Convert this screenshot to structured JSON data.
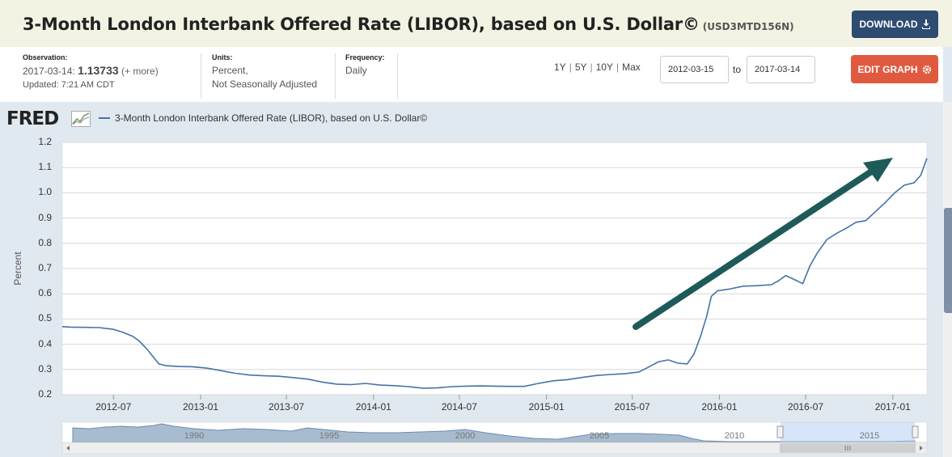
{
  "header": {
    "title": "3-Month London Interbank Offered Rate (LIBOR), based on U.S. Dollar©",
    "series_id": "(USD3MTD156N)",
    "download_label": "DOWNLOAD"
  },
  "info": {
    "observation_label": "Observation:",
    "observation_date": "2017-03-14:",
    "observation_value": "1.13733",
    "observation_more": "(+ more)",
    "updated": "Updated: 7:21 AM CDT",
    "units_label": "Units:",
    "units_line1": "Percent,",
    "units_line2": "Not Seasonally Adjusted",
    "frequency_label": "Frequency:",
    "frequency_value": "Daily"
  },
  "controls": {
    "range_1y": "1Y",
    "range_5y": "5Y",
    "range_10y": "10Y",
    "range_max": "Max",
    "start_date": "2012-03-15",
    "to_label": "to",
    "end_date": "2017-03-14",
    "edit_label": "EDIT GRAPH"
  },
  "brand": {
    "logo_text": "FRED"
  },
  "legend": {
    "series_label": "3-Month London Interbank Offered Rate (LIBOR), based on U.S. Dollar©"
  },
  "colors": {
    "series": "#4572a7",
    "arrow": "#1f5a5a",
    "download_bg": "#2e4b72",
    "edit_bg": "#e05a3f"
  },
  "navigator": {
    "years": [
      "1990",
      "1995",
      "2000",
      "2005",
      "2010",
      "2015"
    ]
  },
  "chart_data": {
    "type": "line",
    "title": "",
    "ylabel": "Percent",
    "ylim": [
      0.2,
      1.2
    ],
    "yticks": [
      "0.2",
      "0.3",
      "0.4",
      "0.5",
      "0.6",
      "0.7",
      "0.8",
      "0.9",
      "1.0",
      "1.1",
      "1.2"
    ],
    "xlim": [
      "2012-03-15",
      "2017-03-14"
    ],
    "xticks": [
      "2012-07",
      "2013-01",
      "2013-07",
      "2014-01",
      "2014-07",
      "2015-01",
      "2015-07",
      "2016-01",
      "2016-07",
      "2017-01"
    ],
    "grid": true,
    "legend_position": "top-left",
    "series": [
      {
        "name": "3-Month London Interbank Offered Rate (LIBOR), based on U.S. Dollar©",
        "points": [
          [
            "2012-03-15",
            0.47
          ],
          [
            "2012-04-01",
            0.468
          ],
          [
            "2012-05-01",
            0.467
          ],
          [
            "2012-06-01",
            0.466
          ],
          [
            "2012-07-01",
            0.459
          ],
          [
            "2012-07-20",
            0.448
          ],
          [
            "2012-08-10",
            0.432
          ],
          [
            "2012-08-25",
            0.412
          ],
          [
            "2012-09-10",
            0.38
          ],
          [
            "2012-09-25",
            0.345
          ],
          [
            "2012-10-05",
            0.322
          ],
          [
            "2012-10-20",
            0.315
          ],
          [
            "2012-11-15",
            0.312
          ],
          [
            "2012-12-15",
            0.311
          ],
          [
            "2013-01-15",
            0.305
          ],
          [
            "2013-02-15",
            0.295
          ],
          [
            "2013-03-15",
            0.285
          ],
          [
            "2013-04-15",
            0.278
          ],
          [
            "2013-05-15",
            0.275
          ],
          [
            "2013-06-15",
            0.273
          ],
          [
            "2013-07-15",
            0.268
          ],
          [
            "2013-08-15",
            0.262
          ],
          [
            "2013-09-15",
            0.25
          ],
          [
            "2013-10-15",
            0.242
          ],
          [
            "2013-11-15",
            0.24
          ],
          [
            "2013-12-15",
            0.245
          ],
          [
            "2014-01-15",
            0.238
          ],
          [
            "2014-02-15",
            0.236
          ],
          [
            "2014-03-15",
            0.232
          ],
          [
            "2014-04-15",
            0.226
          ],
          [
            "2014-05-15",
            0.227
          ],
          [
            "2014-06-15",
            0.232
          ],
          [
            "2014-07-15",
            0.234
          ],
          [
            "2014-08-15",
            0.235
          ],
          [
            "2014-09-15",
            0.234
          ],
          [
            "2014-10-15",
            0.233
          ],
          [
            "2014-11-15",
            0.233
          ],
          [
            "2014-12-15",
            0.245
          ],
          [
            "2015-01-15",
            0.255
          ],
          [
            "2015-02-15",
            0.26
          ],
          [
            "2015-03-15",
            0.268
          ],
          [
            "2015-04-15",
            0.276
          ],
          [
            "2015-05-15",
            0.28
          ],
          [
            "2015-06-15",
            0.283
          ],
          [
            "2015-07-15",
            0.29
          ],
          [
            "2015-08-05",
            0.31
          ],
          [
            "2015-08-25",
            0.33
          ],
          [
            "2015-09-15",
            0.338
          ],
          [
            "2015-10-05",
            0.325
          ],
          [
            "2015-10-25",
            0.322
          ],
          [
            "2015-11-08",
            0.36
          ],
          [
            "2015-11-22",
            0.43
          ],
          [
            "2015-12-05",
            0.51
          ],
          [
            "2015-12-15",
            0.59
          ],
          [
            "2015-12-28",
            0.612
          ],
          [
            "2016-01-20",
            0.618
          ],
          [
            "2016-02-20",
            0.63
          ],
          [
            "2016-03-20",
            0.632
          ],
          [
            "2016-04-20",
            0.636
          ],
          [
            "2016-05-05",
            0.652
          ],
          [
            "2016-05-20",
            0.672
          ],
          [
            "2016-06-10",
            0.654
          ],
          [
            "2016-06-25",
            0.64
          ],
          [
            "2016-07-10",
            0.71
          ],
          [
            "2016-07-25",
            0.76
          ],
          [
            "2016-08-15",
            0.815
          ],
          [
            "2016-09-05",
            0.84
          ],
          [
            "2016-09-25",
            0.86
          ],
          [
            "2016-10-15",
            0.883
          ],
          [
            "2016-11-05",
            0.89
          ],
          [
            "2016-11-25",
            0.925
          ],
          [
            "2016-12-15",
            0.96
          ],
          [
            "2017-01-05",
            1.0
          ],
          [
            "2017-01-25",
            1.03
          ],
          [
            "2017-02-15",
            1.04
          ],
          [
            "2017-03-01",
            1.07
          ],
          [
            "2017-03-14",
            1.137
          ]
        ]
      }
    ]
  }
}
